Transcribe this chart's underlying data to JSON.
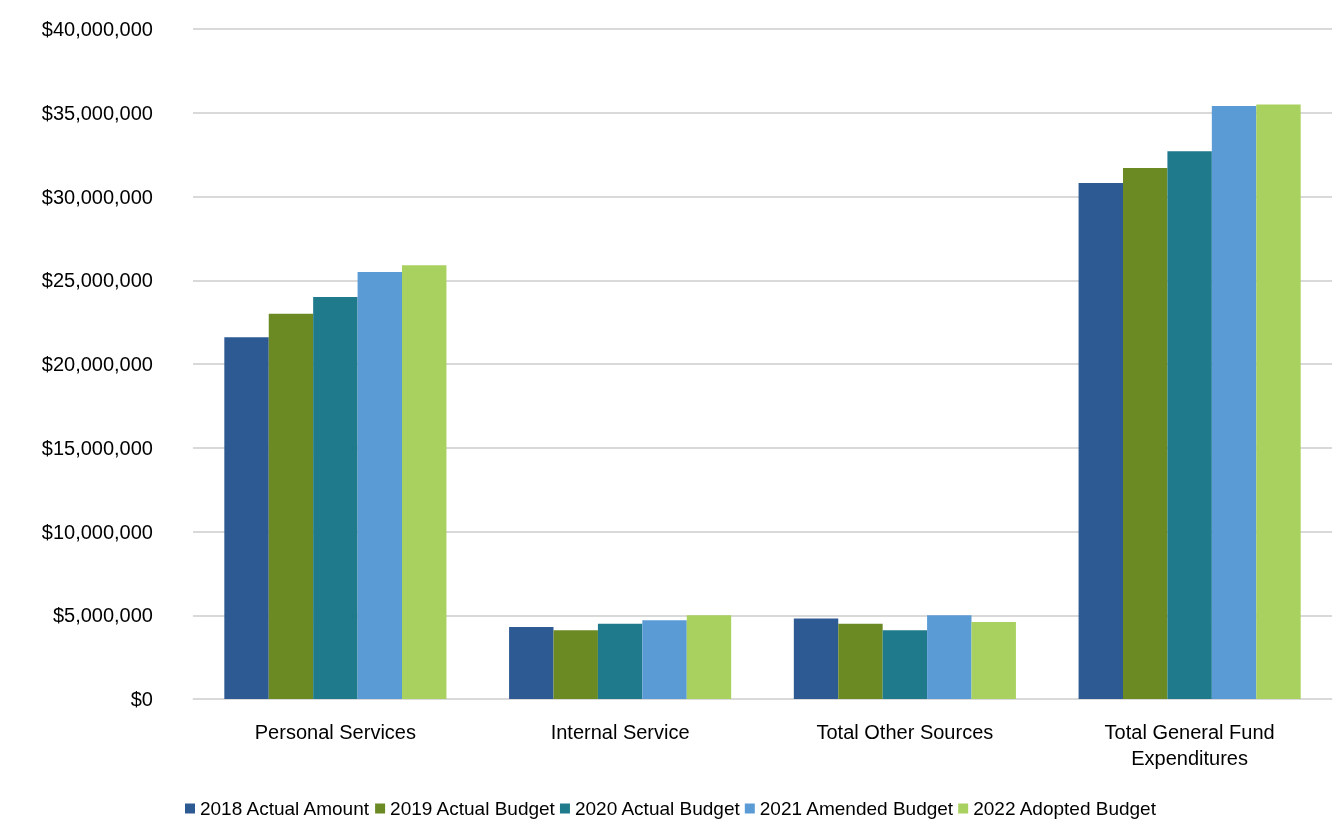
{
  "chart_data": {
    "type": "bar",
    "categories": [
      "Personal Services",
      "Internal Service",
      "Total Other Sources",
      "Total General Fund\nExpenditures"
    ],
    "series": [
      {
        "name": "2018 Actual Amount",
        "color": "#2e5a94",
        "values": [
          21600000,
          4300000,
          4800000,
          30800000
        ]
      },
      {
        "name": "2019 Actual Budget",
        "color": "#6b8a23",
        "values": [
          23000000,
          4100000,
          4500000,
          31700000
        ]
      },
      {
        "name": "2020 Actual Budget",
        "color": "#1f7a8c",
        "values": [
          24000000,
          4500000,
          4100000,
          32700000
        ]
      },
      {
        "name": "2021 Amended Budget",
        "color": "#5b9bd5",
        "values": [
          25500000,
          4700000,
          5000000,
          35400000
        ]
      },
      {
        "name": "2022 Adopted Budget",
        "color": "#a9d15f",
        "values": [
          25900000,
          5000000,
          4600000,
          35500000
        ]
      }
    ],
    "ylim": [
      0,
      40000000
    ],
    "yticks": [
      {
        "value": 0,
        "label": "$0"
      },
      {
        "value": 5000000,
        "label": "$5,000,000"
      },
      {
        "value": 10000000,
        "label": "$10,000,000"
      },
      {
        "value": 15000000,
        "label": "$15,000,000"
      },
      {
        "value": 20000000,
        "label": "$20,000,000"
      },
      {
        "value": 25000000,
        "label": "$25,000,000"
      },
      {
        "value": 30000000,
        "label": "$30,000,000"
      },
      {
        "value": 35000000,
        "label": "$35,000,000"
      },
      {
        "value": 40000000,
        "label": "$40,000,000"
      }
    ],
    "grid": "y",
    "legend": "bottom"
  }
}
